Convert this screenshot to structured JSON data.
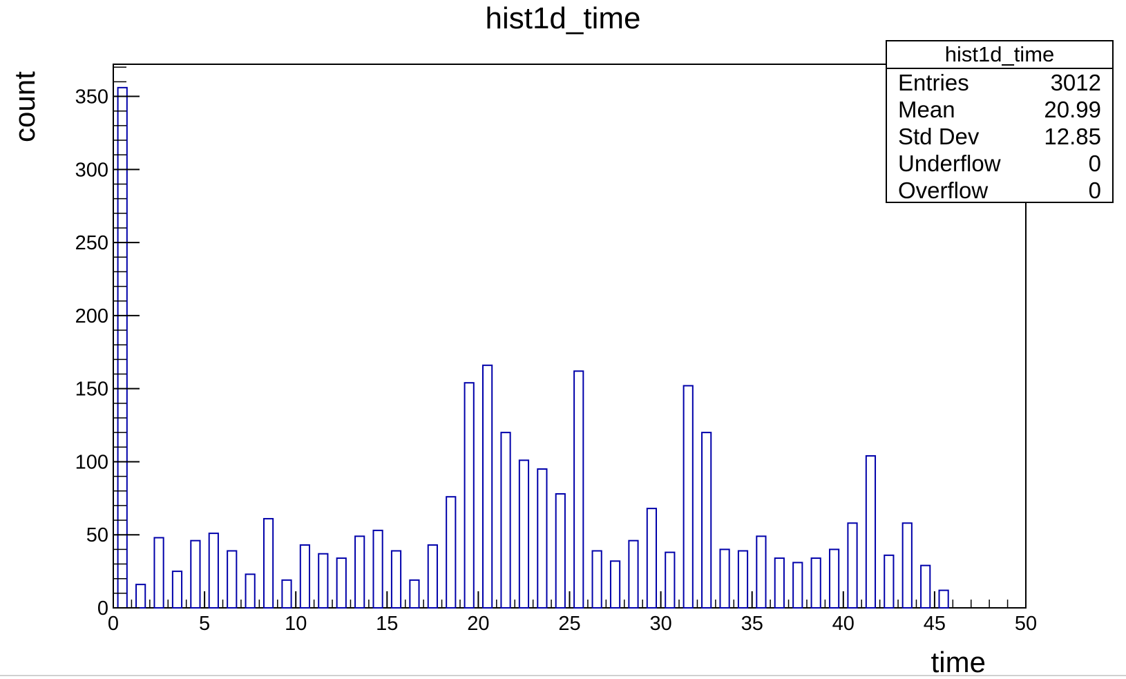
{
  "chart_data": {
    "type": "bar",
    "title": "hist1d_time",
    "xlabel": "time",
    "ylabel": "count",
    "xlim": [
      0,
      50
    ],
    "ylim": [
      0,
      372
    ],
    "bin_width": 1,
    "x_ticks": [
      0,
      5,
      10,
      15,
      20,
      25,
      30,
      35,
      40,
      45,
      50
    ],
    "y_ticks": [
      0,
      50,
      100,
      150,
      200,
      250,
      300,
      350
    ],
    "bar_color": "#0000aa",
    "bin_lows": [
      0,
      1,
      2,
      3,
      4,
      5,
      6,
      7,
      8,
      9,
      10,
      11,
      12,
      13,
      14,
      15,
      16,
      17,
      18,
      19,
      20,
      21,
      22,
      23,
      24,
      25,
      26,
      27,
      28,
      29,
      30,
      31,
      32,
      33,
      34,
      35,
      36,
      37,
      38,
      39,
      40,
      41,
      42,
      43,
      44,
      45,
      46,
      47,
      48,
      49
    ],
    "values": [
      356,
      16,
      48,
      25,
      46,
      51,
      39,
      23,
      61,
      19,
      43,
      37,
      34,
      49,
      53,
      39,
      19,
      43,
      76,
      154,
      166,
      120,
      101,
      95,
      78,
      162,
      39,
      32,
      46,
      68,
      38,
      152,
      120,
      40,
      39,
      49,
      34,
      31,
      34,
      40,
      58,
      104,
      36,
      58,
      29,
      12,
      0,
      0,
      0,
      0
    ],
    "stats_box": {
      "title": "hist1d_time",
      "position": "top-right",
      "rows": [
        {
          "label": "Entries",
          "value": "3012"
        },
        {
          "label": "Mean",
          "value": "20.99"
        },
        {
          "label": "Std Dev",
          "value": "12.85"
        },
        {
          "label": "Underflow",
          "value": "0"
        },
        {
          "label": "Overflow",
          "value": "0"
        }
      ]
    }
  }
}
